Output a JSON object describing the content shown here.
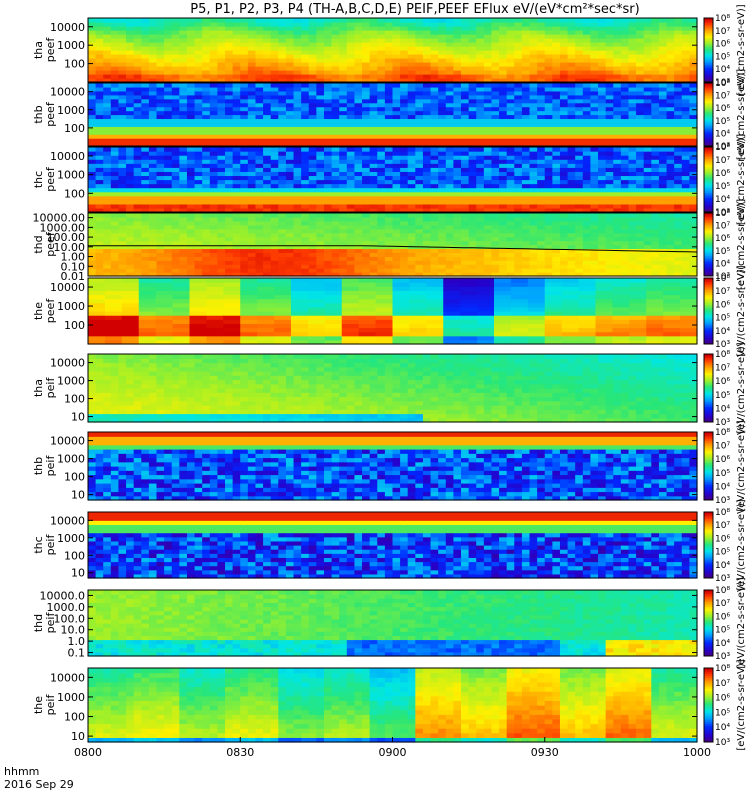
{
  "title": "P5, P1, P2, P3, P4 (TH-A,B,C,D,E) PEIF,PEEF EFlux eV/(eV*cm²*sec*sr)",
  "x_axis": {
    "label_line1": "hhmm",
    "label_line2": "2016 Sep 29",
    "ticks": [
      "0800",
      "0830",
      "0900",
      "0930",
      "1000"
    ]
  },
  "colorbar_unit": "[eV/(cm2-s-sr-eV)]",
  "colorbar_tick_labels": [
    "10³",
    "10⁴",
    "10⁵",
    "10⁶",
    "10⁷",
    "10⁸"
  ],
  "chart_data": [
    {
      "type": "heatmap",
      "panel": "tha_peef",
      "ylabel": [
        "tha",
        "peef"
      ],
      "yticks": [
        "100",
        "1000",
        "10000"
      ],
      "ylim": [
        10,
        30000
      ],
      "scale": "log",
      "zlim": [
        1000,
        100000000
      ],
      "profile": "ee_a"
    },
    {
      "type": "heatmap",
      "panel": "thb_peef",
      "ylabel": [
        "thb",
        "peef"
      ],
      "yticks": [
        "100",
        "1000",
        "10000"
      ],
      "ylim": [
        10,
        30000
      ],
      "scale": "log",
      "zlim": [
        1000,
        100000000
      ],
      "profile": "ee_b"
    },
    {
      "type": "heatmap",
      "panel": "thc_peef",
      "ylabel": [
        "thc",
        "peef"
      ],
      "yticks": [
        "100",
        "1000",
        "10000"
      ],
      "ylim": [
        10,
        30000
      ],
      "scale": "log",
      "zlim": [
        1000,
        100000000
      ],
      "profile": "ee_c"
    },
    {
      "type": "heatmap",
      "panel": "thd_peef",
      "ylabel": [
        "thd",
        "peef"
      ],
      "yticks": [
        "0.01",
        "0.10",
        "1.00",
        "10.00",
        "100.00",
        "1000.00",
        "10000.00"
      ],
      "ylim": [
        0.01,
        30000
      ],
      "scale": "log",
      "zlim": [
        1000,
        100000000
      ],
      "profile": "ee_d"
    },
    {
      "type": "heatmap",
      "panel": "the_peef",
      "ylabel": [
        "the",
        "peef"
      ],
      "yticks": [
        "100",
        "1000",
        "10000"
      ],
      "ylim": [
        10,
        30000
      ],
      "scale": "log",
      "zlim": [
        1000,
        100000000
      ],
      "profile": "ee_e"
    },
    {
      "type": "heatmap",
      "panel": "tha_peif",
      "ylabel": [
        "tha",
        "peif"
      ],
      "yticks": [
        "10",
        "100",
        "1000",
        "10000"
      ],
      "ylim": [
        5,
        30000
      ],
      "scale": "log",
      "zlim": [
        1000,
        100000000
      ],
      "profile": "ei_a"
    },
    {
      "type": "heatmap",
      "panel": "thb_peif",
      "ylabel": [
        "thb",
        "peif"
      ],
      "yticks": [
        "10",
        "100",
        "1000",
        "10000"
      ],
      "ylim": [
        5,
        30000
      ],
      "scale": "log",
      "zlim": [
        1000,
        100000000
      ],
      "profile": "ei_b"
    },
    {
      "type": "heatmap",
      "panel": "thc_peif",
      "ylabel": [
        "thc",
        "peif"
      ],
      "yticks": [
        "10",
        "100",
        "1000",
        "10000"
      ],
      "ylim": [
        5,
        30000
      ],
      "scale": "log",
      "zlim": [
        1000,
        100000000
      ],
      "profile": "ei_c"
    },
    {
      "type": "heatmap",
      "panel": "thd_peif",
      "ylabel": [
        "thd",
        "peif"
      ],
      "yticks": [
        "0.1",
        "1.0",
        "10.0",
        "100.0",
        "1000.0",
        "10000.0"
      ],
      "ylim": [
        0.05,
        30000
      ],
      "scale": "log",
      "zlim": [
        1000,
        100000000
      ],
      "profile": "ei_d"
    },
    {
      "type": "heatmap",
      "panel": "the_peif",
      "ylabel": [
        "the",
        "peif"
      ],
      "yticks": [
        "10",
        "100",
        "1000",
        "10000"
      ],
      "ylim": [
        5,
        30000
      ],
      "scale": "log",
      "zlim": [
        1000,
        100000000
      ],
      "profile": "ei_e"
    }
  ]
}
